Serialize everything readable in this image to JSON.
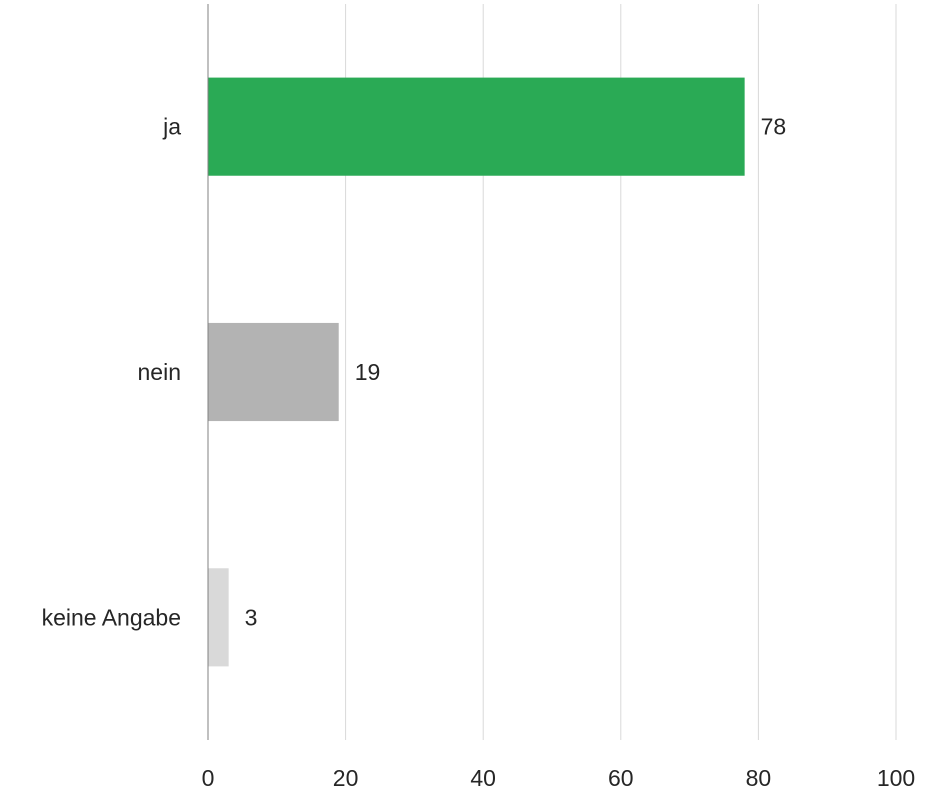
{
  "chart_data": {
    "type": "bar",
    "orientation": "horizontal",
    "categories": [
      "ja",
      "nein",
      "keine Angabe"
    ],
    "values": [
      78,
      19,
      3
    ],
    "bar_colors": [
      "#2aaa55",
      "#b3b3b3",
      "#d9d9d9"
    ],
    "title": "",
    "xlabel": "",
    "ylabel": "",
    "xlim": [
      0,
      100
    ],
    "xticks": [
      0,
      20,
      40,
      60,
      80,
      100
    ],
    "grid": true,
    "legend": "none",
    "data_labels": true
  }
}
